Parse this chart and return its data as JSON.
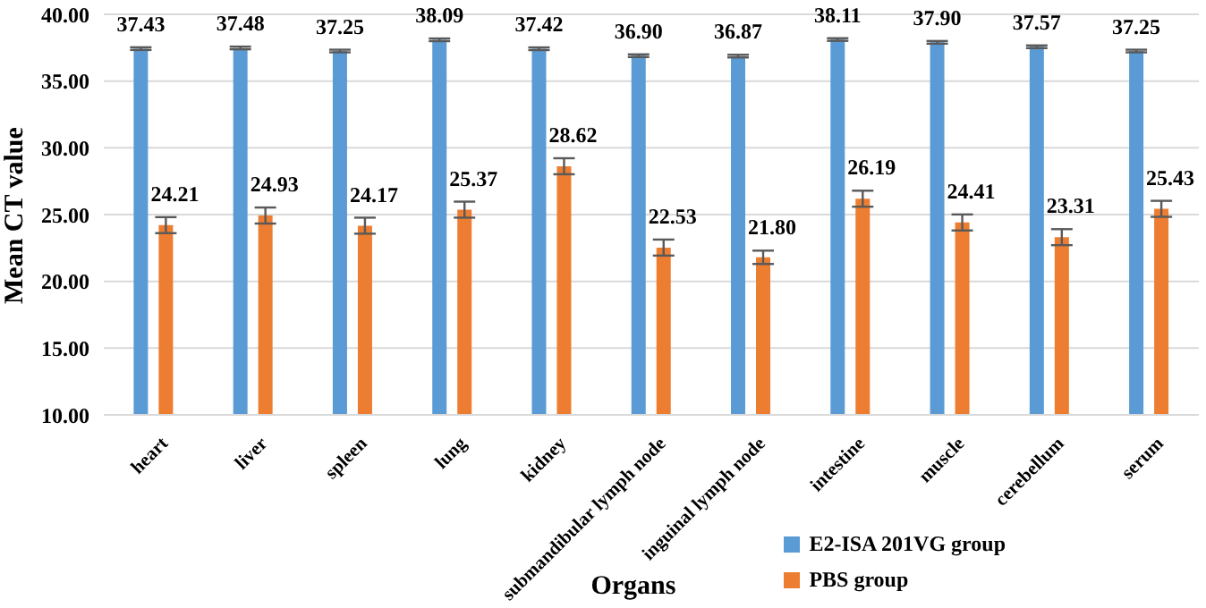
{
  "chart_data": {
    "type": "bar",
    "xlabel": "Organs",
    "ylabel": "Mean CT value",
    "categories": [
      "heart",
      "liver",
      "spleen",
      "lung",
      "kidney",
      "submandibular lymph node",
      "inguinal lymph node",
      "intestine",
      "muscle",
      "cerebellum",
      "serum"
    ],
    "series": [
      {
        "name": "E2-ISA 201VG group",
        "color": "#5b9bd5",
        "values": [
          37.43,
          37.48,
          37.25,
          38.09,
          37.42,
          36.9,
          36.87,
          38.11,
          37.9,
          37.57,
          37.25
        ],
        "errors": [
          0.1,
          0.1,
          0.1,
          0.1,
          0.1,
          0.1,
          0.1,
          0.1,
          0.1,
          0.1,
          0.1
        ],
        "value_labels": [
          "37.43",
          "37.48",
          "37.25",
          "38.09",
          "37.42",
          "36.90",
          "36.87",
          "38.11",
          "37.90",
          "37.57",
          "37.25"
        ]
      },
      {
        "name": "PBS group",
        "color": "#ed7d31",
        "values": [
          24.21,
          24.93,
          24.17,
          25.37,
          28.62,
          22.53,
          21.8,
          26.19,
          24.41,
          23.31,
          25.43
        ],
        "errors": [
          0.6,
          0.6,
          0.6,
          0.6,
          0.6,
          0.6,
          0.5,
          0.6,
          0.6,
          0.6,
          0.6
        ],
        "value_labels": [
          "24.21",
          "24.93",
          "24.17",
          "25.37",
          "28.62",
          "22.53",
          "21.80",
          "26.19",
          "24.41",
          "23.31",
          "25.43"
        ]
      }
    ],
    "ylim": [
      10,
      40
    ],
    "yticks": [
      {
        "value": 10,
        "label": "10.00"
      },
      {
        "value": 15,
        "label": "15.00"
      },
      {
        "value": 20,
        "label": "20.00"
      },
      {
        "value": 25,
        "label": "25.00"
      },
      {
        "value": 30,
        "label": "30.00"
      },
      {
        "value": 35,
        "label": "35.00"
      },
      {
        "value": 40,
        "label": "40.00"
      }
    ],
    "grid": "y",
    "legend": "bottom right"
  }
}
